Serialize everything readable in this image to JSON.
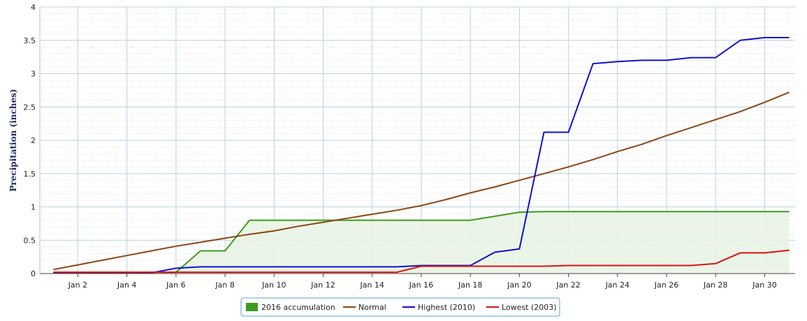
{
  "chart_data": {
    "type": "line",
    "title": "",
    "xlabel": "",
    "ylabel": "Precipitation (inches)",
    "ylim": [
      0,
      4
    ],
    "yticks": [
      0,
      0.5,
      1,
      1.5,
      2,
      2.5,
      3,
      3.5,
      4
    ],
    "ytick_labels": [
      "0",
      "0.5",
      "1",
      "1.5",
      "2",
      "2.5",
      "3",
      "3.5",
      "4"
    ],
    "xlim": [
      1,
      31
    ],
    "xticks": [
      2,
      4,
      6,
      8,
      10,
      12,
      14,
      16,
      18,
      20,
      22,
      24,
      26,
      28,
      30
    ],
    "xtick_labels": [
      "Jan 2",
      "Jan 4",
      "Jan 6",
      "Jan 8",
      "Jan 10",
      "Jan 12",
      "Jan 14",
      "Jan 16",
      "Jan 18",
      "Jan 20",
      "Jan 22",
      "Jan 24",
      "Jan 26",
      "Jan 28",
      "Jan 30"
    ],
    "grid": true,
    "legend_position": "bottom-center",
    "x": [
      1,
      2,
      3,
      4,
      5,
      6,
      7,
      8,
      9,
      10,
      11,
      12,
      13,
      14,
      15,
      16,
      17,
      18,
      19,
      20,
      21,
      22,
      23,
      24,
      25,
      26,
      27,
      28,
      29,
      30,
      31
    ],
    "series": [
      {
        "name": "2016 accumulation",
        "kind": "area",
        "color": "#3d9b1d",
        "fill": "#e9f4e4",
        "values": [
          0.02,
          0.02,
          0.02,
          0.02,
          0.02,
          0.02,
          0.34,
          0.34,
          0.8,
          0.8,
          0.8,
          0.8,
          0.8,
          0.8,
          0.8,
          0.8,
          0.8,
          0.8,
          0.86,
          0.92,
          0.93,
          0.93,
          0.93,
          0.93,
          0.93,
          0.93,
          0.93,
          0.93,
          0.93,
          0.93,
          0.93
        ]
      },
      {
        "name": "Normal",
        "kind": "line",
        "color": "#8b4513",
        "values": [
          0.06,
          0.13,
          0.2,
          0.27,
          0.34,
          0.41,
          0.47,
          0.53,
          0.59,
          0.64,
          0.71,
          0.77,
          0.83,
          0.89,
          0.95,
          1.02,
          1.11,
          1.21,
          1.3,
          1.4,
          1.5,
          1.6,
          1.71,
          1.83,
          1.94,
          2.07,
          2.19,
          2.31,
          2.43,
          2.57,
          2.72
        ]
      },
      {
        "name": "Highest (2010)",
        "kind": "line",
        "color": "#1010cc",
        "values": [
          0.01,
          0.01,
          0.01,
          0.01,
          0.01,
          0.08,
          0.1,
          0.1,
          0.1,
          0.1,
          0.1,
          0.1,
          0.1,
          0.1,
          0.1,
          0.12,
          0.12,
          0.12,
          0.32,
          0.37,
          2.12,
          2.12,
          3.15,
          3.18,
          3.2,
          3.2,
          3.24,
          3.24,
          3.5,
          3.54,
          3.54
        ]
      },
      {
        "name": "Lowest (2003)",
        "kind": "line",
        "color": "#e01010",
        "values": [
          0.02,
          0.02,
          0.02,
          0.02,
          0.02,
          0.02,
          0.02,
          0.02,
          0.02,
          0.02,
          0.02,
          0.02,
          0.02,
          0.02,
          0.02,
          0.11,
          0.11,
          0.11,
          0.11,
          0.11,
          0.11,
          0.12,
          0.12,
          0.12,
          0.12,
          0.12,
          0.12,
          0.15,
          0.31,
          0.31,
          0.35
        ]
      }
    ]
  }
}
